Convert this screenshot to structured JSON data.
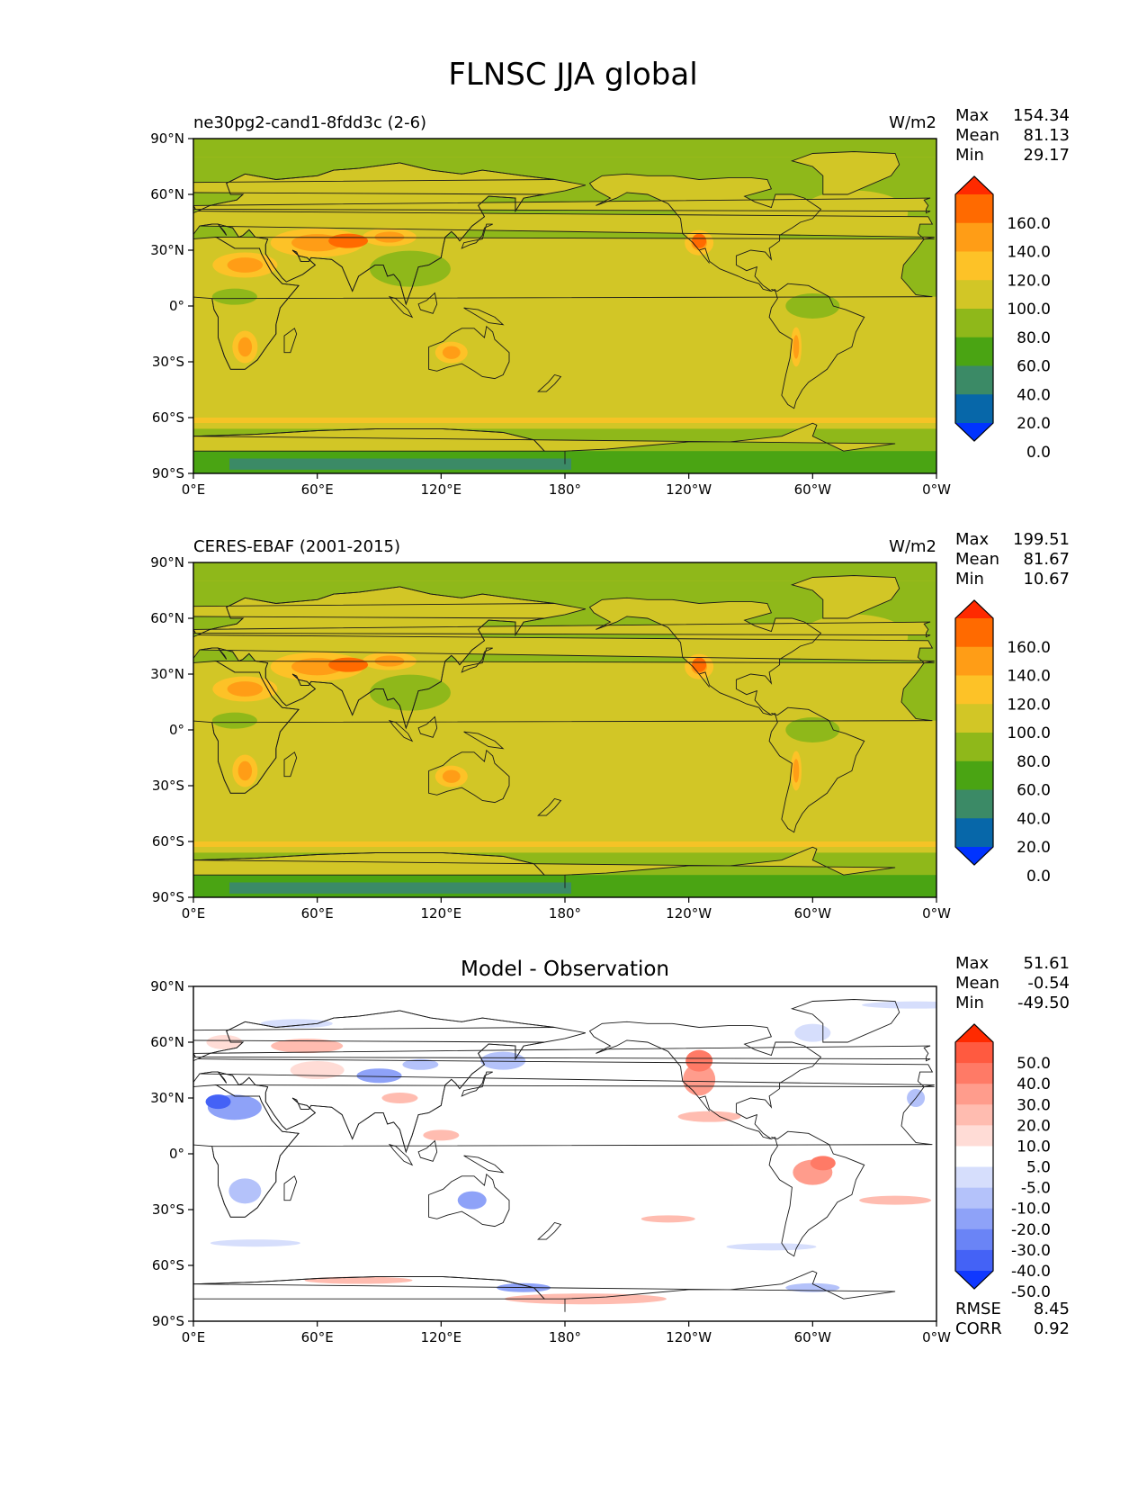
{
  "figure": {
    "title": "FLNSC JJA global"
  },
  "chart_data": [
    {
      "type": "heatmap",
      "panel_title_left": "ne30pg2-cand1-8fdd3c (2-6)",
      "panel_title_center": "",
      "units": "W/m2",
      "stats": [
        {
          "label": "Max",
          "value": "154.34"
        },
        {
          "label": "Mean",
          "value": "81.13"
        },
        {
          "label": "Min",
          "value": "29.17"
        }
      ],
      "xticks": [
        "0°E",
        "60°E",
        "120°E",
        "180°",
        "120°W",
        "60°W",
        "0°W"
      ],
      "yticks": [
        "90°N",
        "60°N",
        "30°N",
        "0°",
        "30°S",
        "60°S",
        "90°S"
      ],
      "xlim": [
        0,
        360
      ],
      "ylim": [
        -90,
        90
      ],
      "colorbar": {
        "levels": [
          "160.0",
          "140.0",
          "120.0",
          "100.0",
          "80.0",
          "60.0",
          "40.0",
          "20.0",
          "0.0"
        ],
        "colors": [
          "#ff2a00",
          "#ff6a00",
          "#ff9d16",
          "#fdc227",
          "#d2c626",
          "#8fb81a",
          "#4aa413",
          "#3b8a66",
          "#0767a9",
          "#0033ff"
        ]
      }
    },
    {
      "type": "heatmap",
      "panel_title_left": "CERES-EBAF (2001-2015)",
      "panel_title_center": "",
      "units": "W/m2",
      "stats": [
        {
          "label": "Max",
          "value": "199.51"
        },
        {
          "label": "Mean",
          "value": "81.67"
        },
        {
          "label": "Min",
          "value": "10.67"
        }
      ],
      "xticks": [
        "0°E",
        "60°E",
        "120°E",
        "180°",
        "120°W",
        "60°W",
        "0°W"
      ],
      "yticks": [
        "90°N",
        "60°N",
        "30°N",
        "0°",
        "30°S",
        "60°S",
        "90°S"
      ],
      "xlim": [
        0,
        360
      ],
      "ylim": [
        -90,
        90
      ],
      "colorbar": {
        "levels": [
          "160.0",
          "140.0",
          "120.0",
          "100.0",
          "80.0",
          "60.0",
          "40.0",
          "20.0",
          "0.0"
        ],
        "colors": [
          "#ff2a00",
          "#ff6a00",
          "#ff9d16",
          "#fdc227",
          "#d2c626",
          "#8fb81a",
          "#4aa413",
          "#3b8a66",
          "#0767a9",
          "#0033ff"
        ]
      }
    },
    {
      "type": "heatmap",
      "panel_title_left": "",
      "panel_title_center": "Model - Observation",
      "units": "",
      "stats": [
        {
          "label": "Max",
          "value": "51.61"
        },
        {
          "label": "Mean",
          "value": "-0.54"
        },
        {
          "label": "Min",
          "value": "-49.50"
        }
      ],
      "bottom_stats": [
        {
          "label": "RMSE",
          "value": "8.45"
        },
        {
          "label": "CORR",
          "value": "0.92"
        }
      ],
      "xticks": [
        "0°E",
        "60°E",
        "120°E",
        "180°",
        "120°W",
        "60°W",
        "0°W"
      ],
      "yticks": [
        "90°N",
        "60°N",
        "30°N",
        "0°",
        "30°S",
        "60°S",
        "90°S"
      ],
      "xlim": [
        0,
        360
      ],
      "ylim": [
        -90,
        90
      ],
      "colorbar": {
        "levels": [
          "50.0",
          "40.0",
          "30.0",
          "20.0",
          "10.0",
          "5.0",
          "-5.0",
          "-10.0",
          "-20.0",
          "-30.0",
          "-40.0",
          "-50.0"
        ],
        "colors": [
          "#ff2a00",
          "#ff5a40",
          "#ff7a66",
          "#ff9c8c",
          "#ffbcb0",
          "#ffdcd6",
          "#ffffff",
          "#d6defc",
          "#b4c2fa",
          "#8ea2f8",
          "#6a84f6",
          "#4462f6",
          "#1038ff"
        ]
      }
    }
  ]
}
